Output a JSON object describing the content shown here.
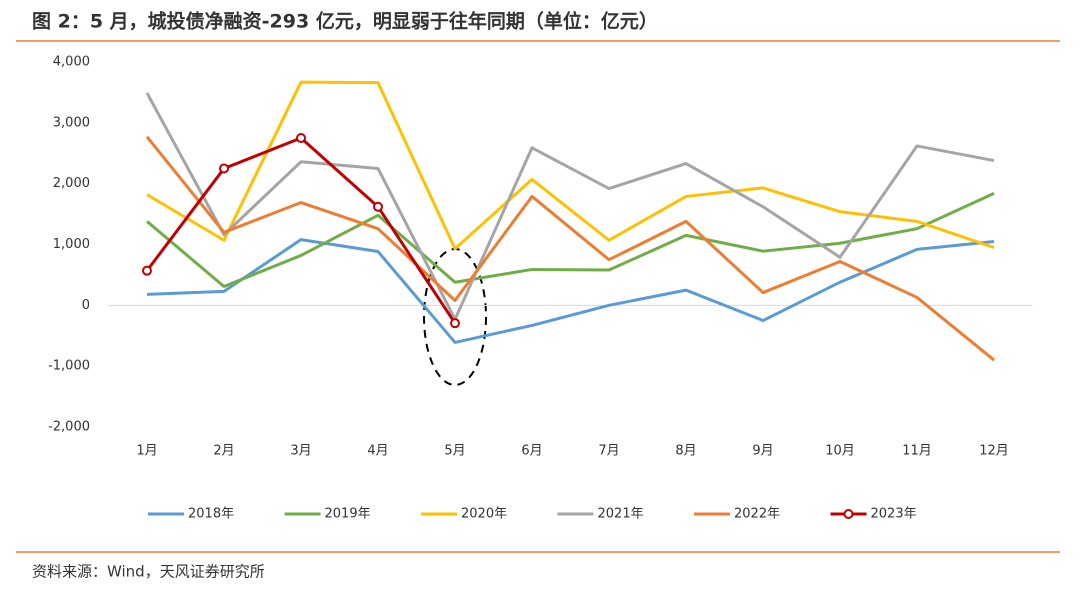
{
  "chart_data": {
    "type": "line",
    "title": "图 2：5 月，城投债净融资-293 亿元，明显弱于往年同期（单位：亿元）",
    "source": "资料来源：Wind，天风证券研究所",
    "categories": [
      "1月",
      "2月",
      "3月",
      "4月",
      "5月",
      "6月",
      "7月",
      "8月",
      "9月",
      "10月",
      "11月",
      "12月"
    ],
    "ylim": [
      -2000,
      4000
    ],
    "yticks": [
      {
        "value": -2000,
        "label": "-2,000"
      },
      {
        "value": -1000,
        "label": "-1,000"
      },
      0,
      {
        "value": 1000,
        "label": "1,000"
      },
      {
        "value": 2000,
        "label": "2,000"
      },
      {
        "value": 3000,
        "label": "3,000"
      },
      {
        "value": 4000,
        "label": "4,000"
      }
    ],
    "grid": false,
    "legend": "bottom",
    "series": [
      {
        "name": "2018年",
        "color": "#5b9bd5",
        "values": [
          180,
          230,
          1080,
          885,
          -610,
          -330,
          0,
          250,
          -250,
          380,
          920,
          1050
        ]
      },
      {
        "name": "2019年",
        "color": "#70ad47",
        "values": [
          1380,
          310,
          820,
          1480,
          380,
          590,
          580,
          1150,
          890,
          1020,
          1260,
          1840
        ]
      },
      {
        "name": "2020年",
        "color": "#ffc000",
        "values": [
          1820,
          1070,
          3670,
          3660,
          930,
          2070,
          1070,
          1790,
          1930,
          1540,
          1380,
          950
        ]
      },
      {
        "name": "2021年",
        "color": "#a5a5a5",
        "values": [
          3490,
          1160,
          2360,
          2250,
          -230,
          2590,
          1920,
          2330,
          1620,
          790,
          2620,
          2380
        ]
      },
      {
        "name": "2022年",
        "color": "#ed7d31",
        "values": [
          2770,
          1200,
          1690,
          1260,
          80,
          1790,
          750,
          1380,
          210,
          720,
          130,
          -900
        ]
      },
      {
        "name": "2023年",
        "color": "#c00000",
        "markers": true,
        "values": [
          570,
          2250,
          2750,
          1620,
          -293,
          null,
          null,
          null,
          null,
          null,
          null,
          null
        ]
      }
    ]
  }
}
